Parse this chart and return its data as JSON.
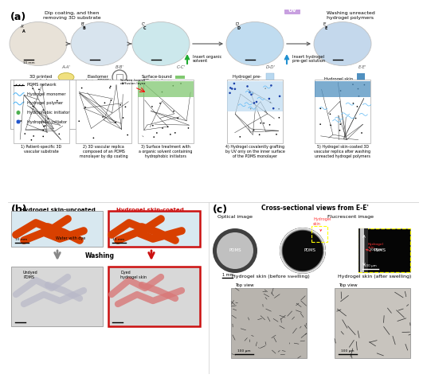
{
  "panel_a_label": "(a)",
  "panel_b_label": "(b)",
  "panel_c_label": "(c)",
  "text_dip_coating": "Dip coating, and then\nremoving 3D substrate",
  "text_uv": "UV",
  "text_washing": "Washing unreacted\nhydrogel polymers",
  "text_insert_organic": "Insert organic\nsolvent",
  "text_insert_hydrogel": "Insert hydrogel\npre-gel solution",
  "cross_labels": [
    "A-A'",
    "B-B'",
    "C-C'",
    "D-D'",
    "E-E'"
  ],
  "material_names": [
    "3D printed\nsubstrate",
    "Elastomer\n(e.g., PDMS)",
    "Surface-bound\ndiffusion layer",
    "Hydrogel pre-\ngel solution",
    "Hydrogel skin"
  ],
  "legend_items": [
    "PDMS network",
    "Hydrogel monomer",
    "Hydrogel polymer",
    "Hydrophobic initiator",
    "Hydrophilic initiator"
  ],
  "legend_colors": [
    "#222222",
    "#5bb8f5",
    "#5bb8f5",
    "#4caf50",
    "#2155cc"
  ],
  "step_captions": [
    "1) Patient-specific 3D\nvascular substrate",
    "2) 3D vascular replica\ncomposed of an PDMS\nmonolayer by dip coating",
    "3) Surface treatment with\na organic solvent containing\nhydrophobic initiators",
    "4) Hydrogel covalently grafting\nby UV only on the inner surface\nof the PDMS monolayer",
    "5) Hydrogel skin-coated 3D\nvascular replica after washing\nunreacted hydrogel polymers"
  ],
  "b_title1": "Hydrogel skin-uncoated\n3D vascular replica",
  "b_title2": "Hydrogel skin-coated\n3D vascular replica",
  "b_label_water": "Water with dye",
  "b_label_washing": "Washing",
  "b_label_undyed": "Undyed\nPDMS",
  "b_label_dyed": "Dyed\nhydrogel skin",
  "c_title": "Cross-sectional views from E-E'",
  "c_optical": "Optical image",
  "c_fluorescent": "Flucrescent image",
  "c_pdms": "PDMS",
  "c_hydrogel_skin": "Hydrogel\nskin",
  "c_scale1": "1 mm",
  "c_scale2": "1 mm",
  "c_scale3": "100 μm",
  "c_before": "Hydrogel skin (before swelling)",
  "c_after": "Hydrogel skin (after swelling)",
  "c_topview": "Top view",
  "c_scale_sem": "100 μm",
  "oval_photo_color1": "#e8e2d8",
  "oval_photo_color2": "#d8e4ee",
  "oval_photo_color3": "#cce8ec",
  "oval_photo_color4": "#c0dcf0",
  "oval_photo_color5": "#c4d8ec",
  "pdms_yellow": "#f0e080",
  "pdms_gray": "#c8c8c8",
  "green_layer": "#80c870",
  "hydrogel_blue": "#5090c0",
  "hydrogel_light": "#b8d8f0",
  "uv_purple": "#c8a0e0",
  "orange_tube": "#d84000",
  "red_border": "#cc1010",
  "bg_white": "#ffffff"
}
